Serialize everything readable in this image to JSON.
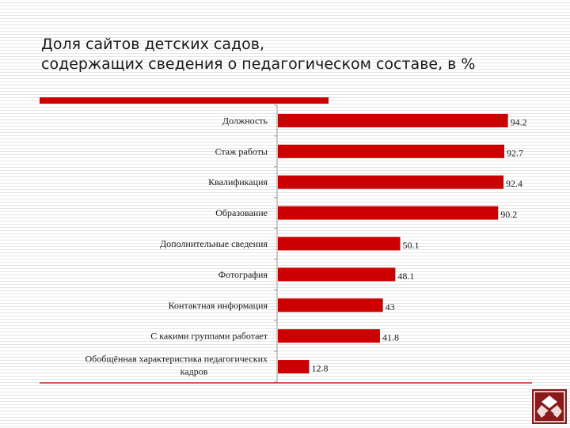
{
  "title_lines": [
    "Доля сайтов детских садов,",
    "содержащих сведения о педагогическом составе, в %"
  ],
  "colors": {
    "bar": "#cc0000",
    "accent": "#cc0000",
    "logo_bg": "#8a1a1a"
  },
  "chart_data": {
    "type": "bar",
    "orientation": "horizontal",
    "title": "Доля сайтов детских садов, содержащих сведения о педагогическом составе, в %",
    "categories": [
      "Должность",
      "Стаж работы",
      "Квалификация",
      "Образование",
      "Дополнительные сведения",
      "Фотография",
      "Контактная информация",
      "С какими группами работает",
      "Обобщённая характеристика педагогических кадров"
    ],
    "values": [
      94.2,
      92.7,
      92.4,
      90.2,
      50.1,
      48.1,
      43,
      41.8,
      12.8
    ],
    "xlim": [
      0,
      100
    ],
    "grid": false,
    "legend": "none",
    "data_labels": true
  }
}
